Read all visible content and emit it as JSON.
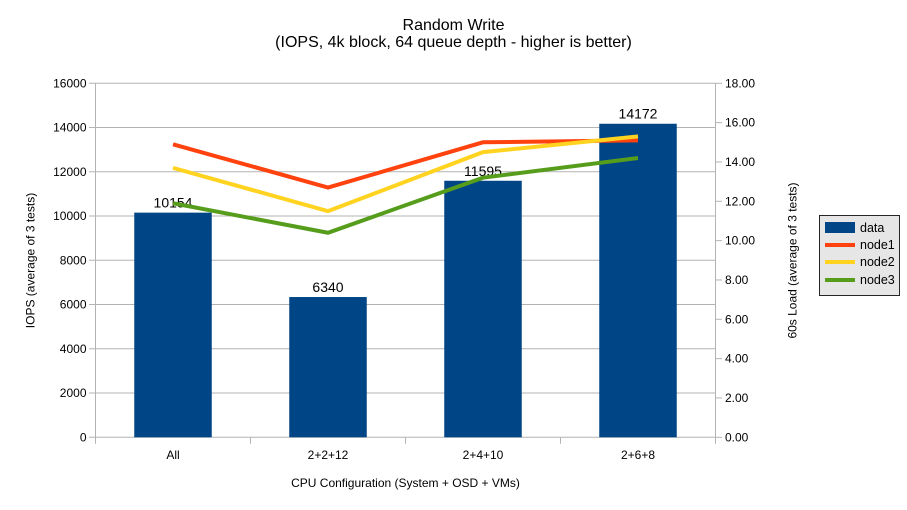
{
  "title": "Random Write",
  "subtitle": "(IOPS, 4k block, 64 queue depth - higher is better)",
  "chart_data": {
    "type": "bar+line",
    "categories": [
      "All",
      "2+2+12",
      "2+4+10",
      "2+6+8"
    ],
    "bar_series": {
      "name": "data",
      "color": "#004586",
      "axis": "left",
      "values": [
        10154,
        6340,
        11595,
        14172
      ],
      "data_labels": [
        "10154",
        "6340",
        "11595",
        "14172"
      ]
    },
    "line_series": [
      {
        "name": "node1",
        "color": "#FF420E",
        "axis": "right",
        "values": [
          14.9,
          12.7,
          15.0,
          15.1
        ]
      },
      {
        "name": "node2",
        "color": "#FFD320",
        "axis": "right",
        "values": [
          13.7,
          11.5,
          14.5,
          15.3
        ]
      },
      {
        "name": "node3",
        "color": "#579D1C",
        "axis": "right",
        "values": [
          11.9,
          10.4,
          13.2,
          14.2
        ]
      }
    ],
    "left_axis": {
      "title": "IOPS (average of 3 tests)",
      "min": 0,
      "max": 16000,
      "step": 2000,
      "tick_labels": [
        "0",
        "2000",
        "4000",
        "6000",
        "8000",
        "10000",
        "12000",
        "14000",
        "16000"
      ]
    },
    "right_axis": {
      "title": "60s Load (average of 3 tests)",
      "min": 0,
      "max": 18,
      "step": 2,
      "tick_labels": [
        "0.00",
        "2.00",
        "4.00",
        "6.00",
        "8.00",
        "10.00",
        "12.00",
        "14.00",
        "16.00",
        "18.00"
      ]
    },
    "x_axis": {
      "title": "CPU Configuration (System + OSD + VMs)"
    },
    "legend": {
      "position": "right",
      "entries": [
        "data",
        "node1",
        "node2",
        "node3"
      ]
    },
    "grid": "horizontal",
    "colors": {
      "grid": "#b3b3b3",
      "axis": "#b3b3b3",
      "text": "#000000",
      "legend_bg": "#e6e6e6",
      "legend_border": "#262626",
      "background": "#ffffff"
    }
  }
}
